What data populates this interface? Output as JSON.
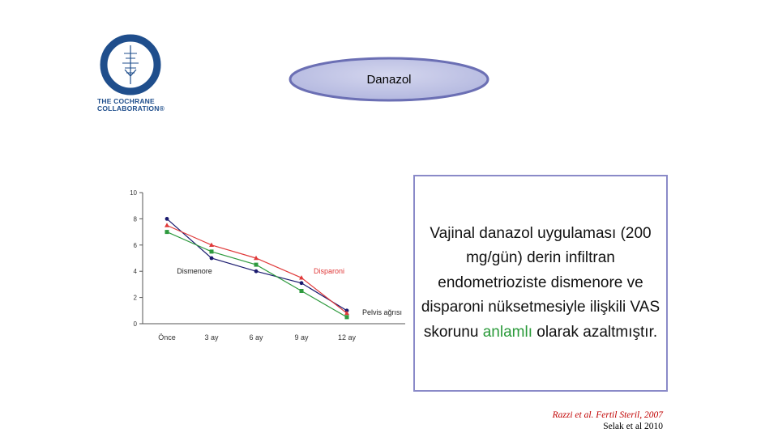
{
  "logo": {
    "name": "cochrane-logo-icon",
    "text_line1": "THE COCHRANE",
    "text_line2": "COLLABORATION®"
  },
  "title": "Danazol",
  "description": {
    "part1": "Vajinal danazol uygulaması (200 mg/gün) derin infiltran endometrioziste dismenore ve disparoni nüksetmesiyle ilişkili VAS skorunu ",
    "highlight": "anlamlı",
    "part2": " olarak azaltmıştır."
  },
  "citations": {
    "line1": "Razzi et al. Fertil Steril, 2007",
    "line2": "Selak et al 2010"
  },
  "colors": {
    "dismenore": "#1a1a6e",
    "disparoni": "#e03a3a",
    "pelvis": "#2e9a3e",
    "highlight": "#2a9a3a",
    "box_border": "#8a8ac8"
  },
  "chart_data": {
    "type": "line",
    "categories": [
      "Önce",
      "3 ay",
      "6 ay",
      "9 ay",
      "12 ay"
    ],
    "yticks": [
      "0",
      "2",
      "4",
      "6",
      "8",
      "10"
    ],
    "ylim": [
      0,
      10
    ],
    "series": [
      {
        "name": "Dismenore",
        "values": [
          8.0,
          5.0,
          4.0,
          3.1,
          1.0
        ]
      },
      {
        "name": "Disparoni",
        "values": [
          7.5,
          6.0,
          5.0,
          3.5,
          0.8
        ]
      },
      {
        "name": "Pelvis ağrısı",
        "values": [
          7.0,
          5.5,
          4.5,
          2.5,
          0.5
        ]
      }
    ],
    "grid": false,
    "legend": "inline labels"
  }
}
